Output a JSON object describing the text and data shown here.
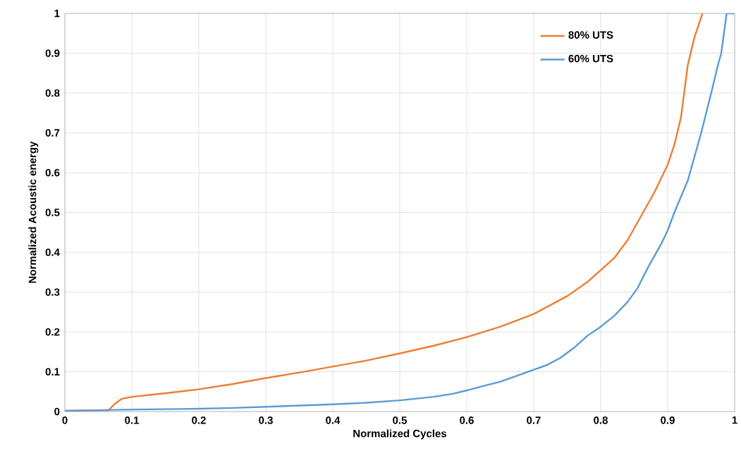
{
  "chart_data": {
    "type": "line",
    "xlabel": "Normalized Cycles",
    "ylabel": "Normalized Acoustic energy",
    "xlim": [
      0,
      1
    ],
    "ylim": [
      0,
      1
    ],
    "xticks": [
      0,
      0.1,
      0.2,
      0.3,
      0.4,
      0.5,
      0.6,
      0.7,
      0.8,
      0.9,
      1
    ],
    "yticks": [
      0,
      0.1,
      0.2,
      0.3,
      0.4,
      0.5,
      0.6,
      0.7,
      0.8,
      0.9,
      1
    ],
    "grid": true,
    "legend": "top right",
    "marker": "none",
    "line_style": "solid",
    "series": [
      {
        "name": "80% UTS",
        "color": "#ed7d31",
        "x": [
          0,
          0.065,
          0.075,
          0.085,
          0.1,
          0.15,
          0.2,
          0.25,
          0.3,
          0.35,
          0.4,
          0.45,
          0.5,
          0.55,
          0.6,
          0.65,
          0.7,
          0.75,
          0.78,
          0.8,
          0.82,
          0.84,
          0.86,
          0.88,
          0.9,
          0.91,
          0.92,
          0.93,
          0.94,
          0.952
        ],
        "values": [
          0.002,
          0.003,
          0.02,
          0.032,
          0.037,
          0.046,
          0.056,
          0.069,
          0.084,
          0.098,
          0.113,
          0.128,
          0.146,
          0.165,
          0.187,
          0.213,
          0.245,
          0.29,
          0.325,
          0.355,
          0.385,
          0.43,
          0.49,
          0.55,
          0.62,
          0.67,
          0.74,
          0.87,
          0.94,
          1.0
        ]
      },
      {
        "name": "60% UTS",
        "color": "#5b9bd5",
        "x": [
          0,
          0.1,
          0.2,
          0.25,
          0.3,
          0.35,
          0.4,
          0.45,
          0.5,
          0.55,
          0.58,
          0.6,
          0.62,
          0.65,
          0.67,
          0.7,
          0.72,
          0.74,
          0.76,
          0.78,
          0.8,
          0.82,
          0.84,
          0.855,
          0.87,
          0.89,
          0.9,
          0.91,
          0.93,
          0.95,
          0.965,
          0.975,
          0.98,
          0.988,
          1.0
        ],
        "values": [
          0.002,
          0.005,
          0.007,
          0.009,
          0.012,
          0.015,
          0.018,
          0.022,
          0.028,
          0.037,
          0.045,
          0.053,
          0.062,
          0.075,
          0.087,
          0.105,
          0.117,
          0.135,
          0.16,
          0.19,
          0.213,
          0.24,
          0.275,
          0.31,
          0.36,
          0.42,
          0.455,
          0.5,
          0.58,
          0.7,
          0.8,
          0.87,
          0.9,
          1.0,
          1.0
        ]
      }
    ]
  }
}
